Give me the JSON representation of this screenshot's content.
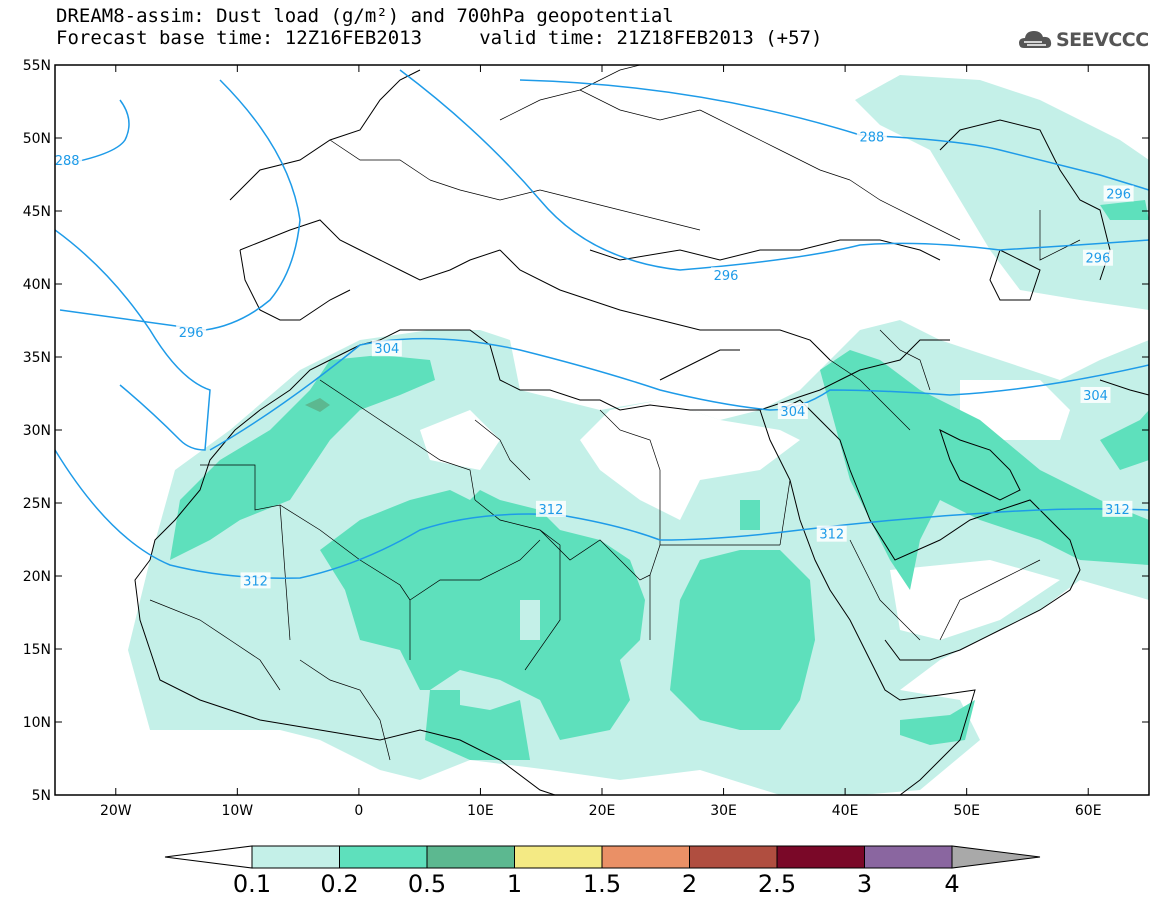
{
  "header": {
    "title_line1": "DREAM8-assim: Dust load (g/m²) and 700hPa geopotential",
    "title_line2": "Forecast base time: 12Z16FEB2013     valid time: 21Z18FEB2013 (+57)",
    "logo_text": "SEEVCCC"
  },
  "map": {
    "lon_range": [
      -25,
      65
    ],
    "lat_range": [
      5,
      55
    ],
    "lon_ticks": [
      "20W",
      "10W",
      "0",
      "10E",
      "20E",
      "30E",
      "40E",
      "50E",
      "60E"
    ],
    "lat_ticks": [
      "55N",
      "50N",
      "45N",
      "40N",
      "35N",
      "30N",
      "25N",
      "20N",
      "15N",
      "10N",
      "5N"
    ],
    "contour_color": "#1e9be8",
    "contour_labels": [
      {
        "text": "288",
        "lon": -24,
        "lat": 48.5
      },
      {
        "text": "288",
        "lon": 42.2,
        "lat": 50.1
      },
      {
        "text": "296",
        "lon": 62.5,
        "lat": 46.2
      },
      {
        "text": "296",
        "lon": 60.8,
        "lat": 41.8
      },
      {
        "text": "296",
        "lon": 30.2,
        "lat": 40.6
      },
      {
        "text": "296",
        "lon": -13.8,
        "lat": 36.7
      },
      {
        "text": "304",
        "lon": 2.3,
        "lat": 35.6
      },
      {
        "text": "304",
        "lon": 35.7,
        "lat": 31.3
      },
      {
        "text": "304",
        "lon": 60.6,
        "lat": 32.4
      },
      {
        "text": "312",
        "lon": 15.8,
        "lat": 24.6
      },
      {
        "text": "312",
        "lon": 38.9,
        "lat": 22.9
      },
      {
        "text": "312",
        "lon": 62.4,
        "lat": 24.6
      },
      {
        "text": "312",
        "lon": -8.5,
        "lat": 19.7
      }
    ]
  },
  "colorbar": {
    "labels": [
      "0.1",
      "0.2",
      "0.5",
      "1",
      "1.5",
      "2",
      "2.5",
      "3",
      "4"
    ],
    "colors": [
      "#c4f0e8",
      "#5ee0bc",
      "#5cb890",
      "#f4ea84",
      "#ea9066",
      "#b04e40",
      "#7a0828",
      "#8a66a0",
      "#a9a9a9"
    ]
  }
}
